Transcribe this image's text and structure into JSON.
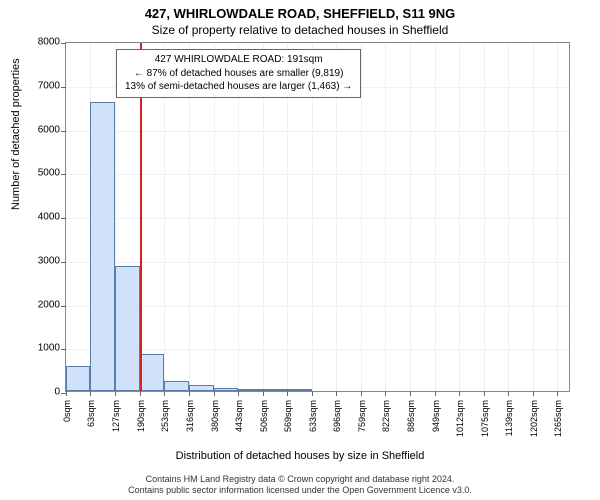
{
  "title": "427, WHIRLOWDALE ROAD, SHEFFIELD, S11 9NG",
  "subtitle": "Size of property relative to detached houses in Sheffield",
  "y_axis_label": "Number of detached properties",
  "x_axis_label": "Distribution of detached houses by size in Sheffield",
  "footer_line1": "Contains HM Land Registry data © Crown copyright and database right 2024.",
  "footer_line2": "Contains public sector information licensed under the Open Government Licence v3.0.",
  "chart": {
    "type": "bar",
    "ylim": [
      0,
      8000
    ],
    "ytick_step": 1000,
    "xlim_sqm": [
      0,
      1300
    ],
    "x_tick_labels": [
      "0sqm",
      "63sqm",
      "127sqm",
      "190sqm",
      "253sqm",
      "316sqm",
      "380sqm",
      "443sqm",
      "506sqm",
      "569sqm",
      "633sqm",
      "696sqm",
      "759sqm",
      "822sqm",
      "886sqm",
      "949sqm",
      "1012sqm",
      "1075sqm",
      "1139sqm",
      "1202sqm",
      "1265sqm"
    ],
    "x_tick_positions": [
      0,
      63,
      127,
      190,
      253,
      316,
      380,
      443,
      506,
      569,
      633,
      696,
      759,
      822,
      886,
      949,
      1012,
      1075,
      1139,
      1202,
      1265
    ],
    "bar_edges_sqm": [
      0,
      63,
      127,
      190,
      253,
      316,
      380,
      443,
      506,
      569,
      633
    ],
    "bar_values": [
      570,
      6600,
      2850,
      850,
      230,
      130,
      70,
      40,
      30,
      20
    ],
    "bar_fill": "#cfe2f9",
    "bar_stroke": "#5a7ea8",
    "marker_sqm": 191,
    "marker_color": "#d22323",
    "grid_color": "#eef0f4",
    "background": "#ffffff"
  },
  "callout": {
    "line1": "427 WHIRLOWDALE ROAD: 191sqm",
    "line2": "← 87% of detached houses are smaller (9,819)",
    "line3": "13% of semi-detached houses are larger (1,463) →"
  }
}
